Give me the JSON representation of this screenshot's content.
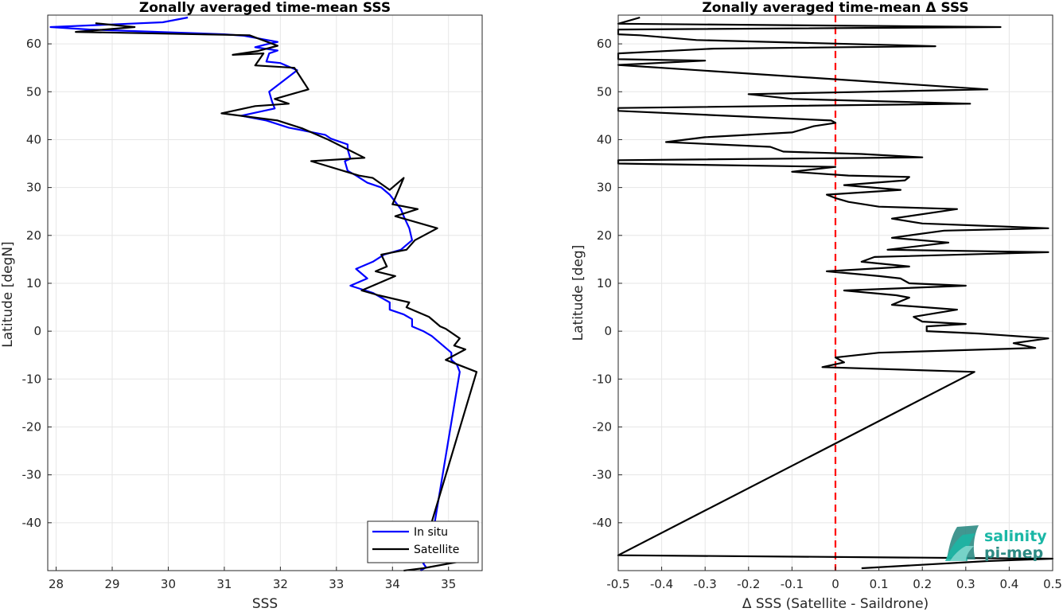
{
  "chart_data": [
    {
      "type": "line",
      "title": "Zonally averaged time-mean SSS",
      "xlabel": "SSS",
      "ylabel": "Latitude [degN]",
      "xlim": [
        27.85,
        35.6
      ],
      "ylim": [
        -50,
        66
      ],
      "x_ticks": [
        "28",
        "29",
        "30",
        "31",
        "32",
        "33",
        "34",
        "35"
      ],
      "y_ticks": [
        "-40",
        "-30",
        "-20",
        "-10",
        "0",
        "10",
        "20",
        "30",
        "40",
        "50",
        "60"
      ],
      "grid": true,
      "legend": {
        "position": "bottom-right",
        "entries": [
          "In situ",
          "Satellite"
        ]
      },
      "series": [
        {
          "name": "In situ",
          "color": "#0000ff",
          "points": [
            [
              30.35,
              65.5
            ],
            [
              29.9,
              64.5
            ],
            [
              27.9,
              63.5
            ],
            [
              28.6,
              63.0
            ],
            [
              31.0,
              62.0
            ],
            [
              31.35,
              61.7
            ],
            [
              31.95,
              60.4
            ],
            [
              31.75,
              59.9
            ],
            [
              31.55,
              59.3
            ],
            [
              31.95,
              58.6
            ],
            [
              31.8,
              58.0
            ],
            [
              31.75,
              56.3
            ],
            [
              32.0,
              56.0
            ],
            [
              32.3,
              54.5
            ],
            [
              31.8,
              50.0
            ],
            [
              31.85,
              48.0
            ],
            [
              31.9,
              46.5
            ],
            [
              31.3,
              45.0
            ],
            [
              31.75,
              44.0
            ],
            [
              32.15,
              42.5
            ],
            [
              32.8,
              41.0
            ],
            [
              32.9,
              40.2
            ],
            [
              33.2,
              39.0
            ],
            [
              33.2,
              38.0
            ],
            [
              33.25,
              36.0
            ],
            [
              33.15,
              35.5
            ],
            [
              33.2,
              33.5
            ],
            [
              33.35,
              32.5
            ],
            [
              33.55,
              31.0
            ],
            [
              33.8,
              30.0
            ],
            [
              33.95,
              28.5
            ],
            [
              34.05,
              27.0
            ],
            [
              34.15,
              25.5
            ],
            [
              34.2,
              24.0
            ],
            [
              34.3,
              21.5
            ],
            [
              34.35,
              19.0
            ],
            [
              34.15,
              17.0
            ],
            [
              33.85,
              16.0
            ],
            [
              33.65,
              14.5
            ],
            [
              33.35,
              13.0
            ],
            [
              33.55,
              11.0
            ],
            [
              33.25,
              9.5
            ],
            [
              33.65,
              8.0
            ],
            [
              33.95,
              6.0
            ],
            [
              33.95,
              4.5
            ],
            [
              34.2,
              3.5
            ],
            [
              34.35,
              2.5
            ],
            [
              34.35,
              1.0
            ],
            [
              34.55,
              0.0
            ],
            [
              34.7,
              -1.0
            ],
            [
              34.85,
              -2.5
            ],
            [
              35.05,
              -4.5
            ],
            [
              35.05,
              -6.0
            ],
            [
              35.15,
              -7.0
            ],
            [
              35.2,
              -8.5
            ],
            [
              34.65,
              -47.2
            ],
            [
              34.55,
              -48.5
            ],
            [
              34.6,
              -49.3
            ],
            [
              34.5,
              -50.0
            ]
          ]
        },
        {
          "name": "Satellite",
          "color": "#000000",
          "points": [
            [
              28.7,
              64.3
            ],
            [
              29.4,
              63.5
            ],
            [
              28.35,
              62.5
            ],
            [
              31.45,
              61.8
            ],
            [
              31.95,
              59.6
            ],
            [
              31.6,
              58.5
            ],
            [
              31.15,
              57.7
            ],
            [
              31.7,
              58.0
            ],
            [
              31.55,
              55.5
            ],
            [
              32.25,
              55.0
            ],
            [
              32.5,
              50.5
            ],
            [
              31.9,
              48.5
            ],
            [
              32.15,
              47.5
            ],
            [
              31.55,
              47.0
            ],
            [
              30.95,
              45.5
            ],
            [
              31.95,
              44.0
            ],
            [
              32.4,
              42.3
            ],
            [
              32.85,
              40.0
            ],
            [
              33.5,
              36.2
            ],
            [
              32.55,
              35.5
            ],
            [
              33.4,
              32.5
            ],
            [
              33.65,
              32.0
            ],
            [
              33.95,
              29.5
            ],
            [
              34.2,
              32.0
            ],
            [
              34.0,
              26.5
            ],
            [
              34.45,
              25.5
            ],
            [
              34.05,
              24.0
            ],
            [
              34.8,
              21.5
            ],
            [
              34.4,
              19.0
            ],
            [
              34.25,
              17.0
            ],
            [
              33.8,
              16.0
            ],
            [
              33.9,
              13.5
            ],
            [
              33.7,
              12.5
            ],
            [
              34.05,
              11.5
            ],
            [
              33.45,
              8.5
            ],
            [
              33.75,
              7.5
            ],
            [
              34.3,
              6.0
            ],
            [
              34.25,
              5.0
            ],
            [
              34.45,
              4.0
            ],
            [
              34.65,
              3.0
            ],
            [
              34.85,
              1.0
            ],
            [
              34.95,
              0.5
            ],
            [
              35.2,
              -1.5
            ],
            [
              35.1,
              -3.0
            ],
            [
              35.3,
              -3.8
            ],
            [
              34.95,
              -6.0
            ],
            [
              35.5,
              -8.5
            ],
            [
              34.5,
              -47.7
            ],
            [
              35.25,
              -48.0
            ],
            [
              34.55,
              -49.5
            ],
            [
              34.2,
              -50.0
            ]
          ]
        }
      ]
    },
    {
      "type": "line",
      "title": "Zonally averaged time-mean Δ SSS",
      "xlabel": "Δ SSS (Satellite - Saildrone)",
      "ylabel": "Latitude [deg]",
      "xlim": [
        -0.5,
        0.5
      ],
      "ylim": [
        -50,
        66
      ],
      "x_ticks": [
        "-0.5",
        "-0.4",
        "-0.3",
        "-0.2",
        "-0.1",
        "0",
        "0.1",
        "0.2",
        "0.3",
        "0.4",
        "0.5"
      ],
      "y_ticks": [
        "-40",
        "-30",
        "-20",
        "-10",
        "0",
        "10",
        "20",
        "30",
        "40",
        "50",
        "60"
      ],
      "grid": true,
      "reference_line": {
        "x": 0,
        "color": "#ff0000",
        "style": "dashed"
      },
      "series": [
        {
          "name": "",
          "color": "#000000",
          "points": [
            [
              -0.45,
              65.5
            ],
            [
              -0.5,
              64.2
            ],
            [
              0.38,
              63.5
            ],
            [
              -0.5,
              63.0
            ],
            [
              -0.5,
              62.0
            ],
            [
              -0.45,
              61.8
            ],
            [
              -0.32,
              60.8
            ],
            [
              0.23,
              59.5
            ],
            [
              -0.28,
              59.0
            ],
            [
              -0.5,
              58.0
            ],
            [
              -0.5,
              57.4
            ],
            [
              -0.5,
              56.8
            ],
            [
              -0.3,
              56.5
            ],
            [
              -0.5,
              55.6
            ],
            [
              0.35,
              50.5
            ],
            [
              -0.2,
              49.5
            ],
            [
              -0.1,
              48.5
            ],
            [
              0.31,
              47.5
            ],
            [
              -0.5,
              46.6
            ],
            [
              -0.5,
              46.0
            ],
            [
              -0.01,
              44.0
            ],
            [
              0.0,
              43.5
            ],
            [
              -0.05,
              42.8
            ],
            [
              -0.1,
              41.5
            ],
            [
              -0.3,
              40.5
            ],
            [
              -0.39,
              39.5
            ],
            [
              -0.15,
              38.5
            ],
            [
              -0.12,
              37.5
            ],
            [
              0.06,
              37.0
            ],
            [
              0.2,
              36.3
            ],
            [
              -0.5,
              35.7
            ],
            [
              -0.5,
              35.5
            ],
            [
              -0.5,
              35.0
            ],
            [
              0.0,
              34.3
            ],
            [
              -0.1,
              33.3
            ],
            [
              0.03,
              32.5
            ],
            [
              0.17,
              32.2
            ],
            [
              0.16,
              31.5
            ],
            [
              0.02,
              30.5
            ],
            [
              0.15,
              29.5
            ],
            [
              -0.02,
              28.5
            ],
            [
              0.0,
              27.8
            ],
            [
              0.03,
              27.0
            ],
            [
              0.1,
              26.0
            ],
            [
              0.28,
              25.5
            ],
            [
              0.13,
              23.5
            ],
            [
              0.2,
              22.5
            ],
            [
              0.49,
              21.5
            ],
            [
              0.25,
              21.0
            ],
            [
              0.13,
              19.5
            ],
            [
              0.26,
              18.5
            ],
            [
              0.12,
              17.0
            ],
            [
              0.49,
              16.5
            ],
            [
              0.09,
              15.5
            ],
            [
              0.06,
              14.5
            ],
            [
              0.17,
              13.5
            ],
            [
              -0.02,
              12.5
            ],
            [
              0.1,
              11.5
            ],
            [
              0.15,
              11.0
            ],
            [
              0.17,
              10.0
            ],
            [
              0.3,
              9.5
            ],
            [
              0.02,
              8.5
            ],
            [
              0.14,
              7.5
            ],
            [
              0.17,
              7.0
            ],
            [
              0.13,
              5.5
            ],
            [
              0.28,
              4.5
            ],
            [
              0.18,
              3.0
            ],
            [
              0.2,
              2.0
            ],
            [
              0.3,
              1.5
            ],
            [
              0.21,
              1.0
            ],
            [
              0.21,
              0.0
            ],
            [
              0.33,
              -0.5
            ],
            [
              0.49,
              -1.5
            ],
            [
              0.41,
              -2.5
            ],
            [
              0.46,
              -3.5
            ],
            [
              0.1,
              -4.5
            ],
            [
              0.0,
              -5.5
            ],
            [
              0.02,
              -6.5
            ],
            [
              -0.03,
              -7.5
            ],
            [
              0.32,
              -8.5
            ],
            [
              -0.5,
              -46.8
            ],
            [
              0.5,
              -47.5
            ],
            [
              0.35,
              -48.0
            ],
            [
              0.06,
              -49.5
            ]
          ]
        }
      ]
    }
  ],
  "logo": {
    "line1": "salinity",
    "line2": "pi-mep",
    "color1": "#1ab7a6",
    "color2": "#2d8b84"
  }
}
